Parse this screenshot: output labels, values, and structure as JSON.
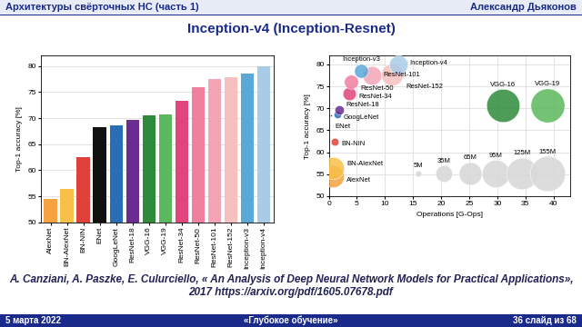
{
  "header": {
    "left": "Архитектуры свёрточных НС (часть 1)",
    "right": "Александр Дьяконов"
  },
  "title": "Inception-v4 (Inception-Resnet)",
  "chart_data": [
    {
      "type": "bar",
      "categories": [
        "AlexNet",
        "BN-AlexNet",
        "BN-NIN",
        "ENet",
        "GoogLeNet",
        "ResNet-18",
        "VGG-16",
        "VGG-19",
        "ResNet-34",
        "ResNet-50",
        "ResNet-101",
        "ResNet-152",
        "Inception-v3",
        "Inception-v4"
      ],
      "values": [
        54.5,
        56.5,
        62.5,
        68.3,
        68.7,
        69.6,
        70.6,
        70.7,
        73.3,
        76.0,
        77.5,
        77.8,
        78.5,
        80.0
      ],
      "colors": [
        "#f4a340",
        "#f7c04a",
        "#e0403a",
        "#111111",
        "#2a6fb5",
        "#6a2c91",
        "#2e8b3a",
        "#5cb85c",
        "#e0457b",
        "#f07fa0",
        "#f4a5b5",
        "#f7c0c0",
        "#5aa8d8",
        "#a8cce8"
      ],
      "ylabel": "Top-1 accuracy [%]",
      "ylim": [
        50,
        82
      ],
      "yticks": [
        50,
        55,
        60,
        65,
        70,
        75,
        80
      ],
      "grid": true
    },
    {
      "type": "scatter",
      "point_labels": [
        "AlexNet",
        "BN-AlexNet",
        "BN-NIN",
        "ENet",
        "GoogLeNet",
        "ResNet-18",
        "VGG-16",
        "VGG-19",
        "ResNet-34",
        "ResNet-50",
        "ResNet-101",
        "ResNet-152",
        "Inception-v3",
        "Inception-v4"
      ],
      "x": [
        0.7,
        0.7,
        1.1,
        0.4,
        1.5,
        1.8,
        31,
        39,
        3.6,
        3.9,
        7.6,
        11.3,
        5.7,
        12.3
      ],
      "values": [
        54.5,
        56.5,
        62.5,
        68.3,
        68.7,
        69.6,
        70.6,
        70.7,
        73.3,
        76.0,
        77.5,
        77.8,
        78.5,
        80.0
      ],
      "sizes": [
        61,
        62,
        7.6,
        0.4,
        7,
        11,
        138,
        144,
        22,
        25,
        44,
        60,
        24,
        43
      ],
      "colors": [
        "#f4a340",
        "#f7c04a",
        "#e0403a",
        "#111111",
        "#2a6fb5",
        "#6a2c91",
        "#2e8b3a",
        "#5cb85c",
        "#e0457b",
        "#f07fa0",
        "#f4a5b5",
        "#f7c0c0",
        "#5aa8d8",
        "#a8cce8"
      ],
      "size_legend": {
        "values": [
          5,
          35,
          65,
          95,
          125,
          155
        ],
        "labels": [
          "5M",
          "35M",
          "65M",
          "95M",
          "125M",
          "155M"
        ]
      },
      "xlabel": "Operations [G-Ops]",
      "ylabel": "Top-1 accuracy [%]",
      "xlim": [
        0,
        43
      ],
      "xticks": [
        0,
        5,
        10,
        15,
        20,
        25,
        30,
        35,
        40
      ],
      "ylim": [
        50,
        82
      ],
      "yticks": [
        50,
        55,
        60,
        65,
        70,
        75,
        80
      ],
      "grid": true
    }
  ],
  "citation": "A. Canziani, A. Paszke, E. Culurciello, « An Analysis of Deep Neural Network Models for Practical Applications», 2017 https://arxiv.org/pdf/1605.07678.pdf",
  "footer": {
    "left": "5 марта 2022",
    "center": "«Глубокое обучение»",
    "right": "36 слайд из 68"
  }
}
